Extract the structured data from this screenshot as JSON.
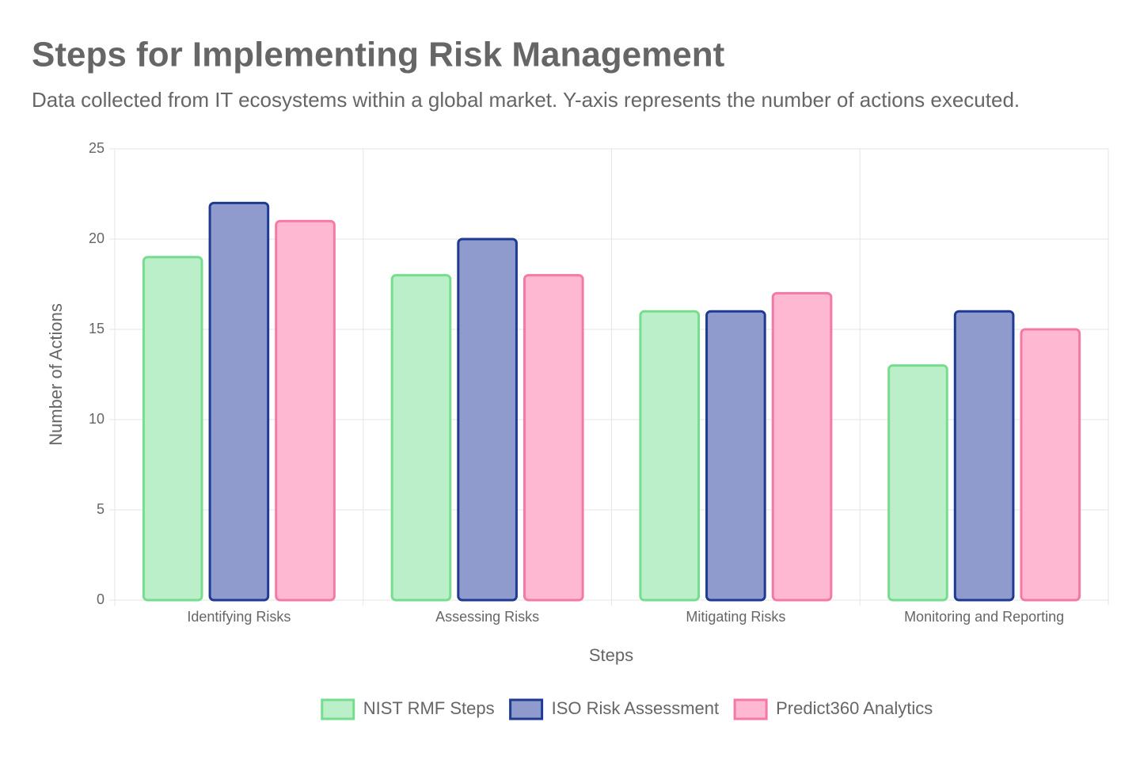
{
  "chart_data": {
    "type": "bar",
    "title": "Steps for Implementing Risk Management",
    "subtitle": "Data collected from IT ecosystems within a global market. Y-axis represents the number of actions executed.",
    "x_label": "Steps",
    "y_label": "Number of Actions",
    "categories": [
      "Identifying Risks",
      "Assessing Risks",
      "Mitigating Risks",
      "Monitoring and Reporting"
    ],
    "series": [
      {
        "name": "NIST RMF Steps",
        "color": "#bbefc9",
        "border_color": "#77dd8e",
        "values": [
          19,
          18,
          16,
          13
        ]
      },
      {
        "name": "ISO Risk Assessment",
        "color": "#8f9bcd",
        "border_color": "#1f3a93",
        "values": [
          22,
          20,
          16,
          16
        ]
      },
      {
        "name": "Predict360 Analytics",
        "color": "#ffb8d1",
        "border_color": "#f47aa5",
        "values": [
          21,
          18,
          17,
          15
        ]
      }
    ],
    "ylim": [
      0,
      25
    ],
    "yticks": [
      0,
      5,
      10,
      15,
      20,
      25
    ],
    "grid": true,
    "legend": "bottom"
  }
}
